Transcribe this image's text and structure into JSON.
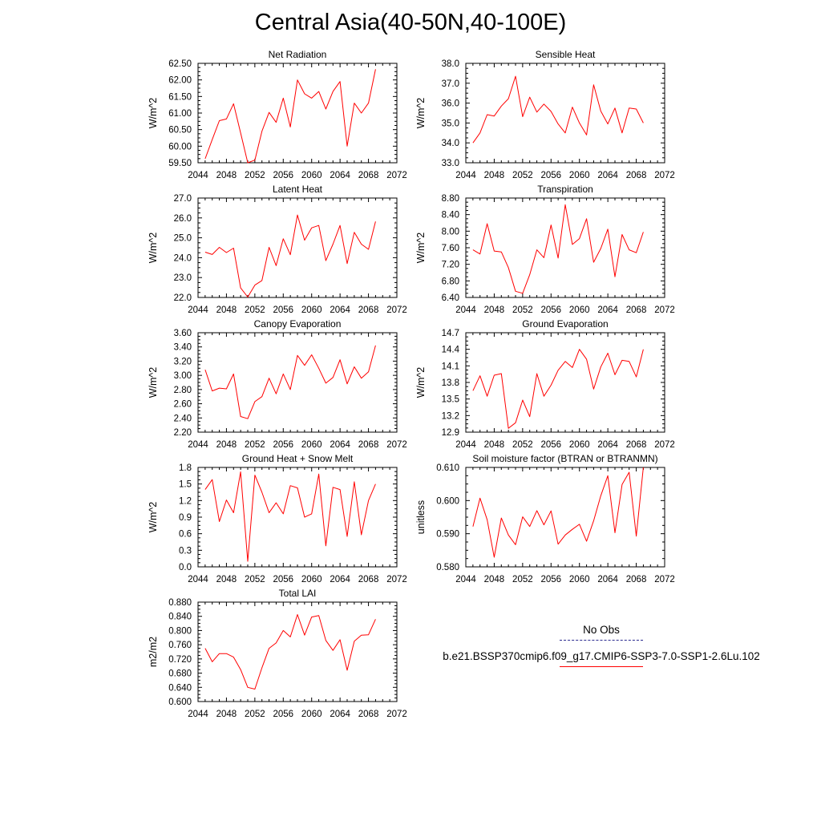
{
  "title": "Central Asia(40-50N,40-100E)",
  "legend": {
    "items": [
      {
        "label": "No Obs",
        "color": "#2a2a8f",
        "style": "dashed"
      },
      {
        "label": "b.e21.BSSP370cmip6.f09_g17.CMIP6-SSP3-7.0-SSP1-2.6Lu.102",
        "color": "#ff0000",
        "style": "solid"
      }
    ]
  },
  "chart_data": [
    {
      "type": "line",
      "title": "Net Radiation",
      "ylabel": "W/m^2",
      "xlim": [
        2044,
        2072
      ],
      "xticks": [
        "2044",
        "2048",
        "2052",
        "2056",
        "2060",
        "2064",
        "2068",
        "2072"
      ],
      "ylim": [
        59.5,
        62.5
      ],
      "yticks": [
        "59.50",
        "60.00",
        "60.50",
        "61.00",
        "61.50",
        "62.00",
        "62.50"
      ],
      "series": [
        {
          "color": "#ff0000",
          "x": [
            2045,
            2046,
            2047,
            2048,
            2049,
            2050,
            2051,
            2052,
            2053,
            2054,
            2055,
            2056,
            2057,
            2058,
            2059,
            2060,
            2061,
            2062,
            2063,
            2064,
            2065,
            2066,
            2067,
            2068,
            2069
          ],
          "y": [
            59.62,
            60.2,
            60.77,
            60.82,
            61.28,
            60.4,
            59.5,
            59.58,
            60.45,
            61.02,
            60.72,
            61.45,
            60.58,
            62.0,
            61.58,
            61.45,
            61.65,
            61.12,
            61.65,
            61.95,
            60.0,
            61.3,
            61.0,
            61.3,
            62.32
          ]
        }
      ]
    },
    {
      "type": "line",
      "title": "Sensible Heat",
      "ylabel": "W/m^2",
      "xlim": [
        2044,
        2072
      ],
      "xticks": [
        "2044",
        "2048",
        "2052",
        "2056",
        "2060",
        "2064",
        "2068",
        "2072"
      ],
      "ylim": [
        33.0,
        38.0
      ],
      "yticks": [
        "33.0",
        "34.0",
        "35.0",
        "36.0",
        "37.0",
        "38.0"
      ],
      "series": [
        {
          "color": "#ff0000",
          "x": [
            2045,
            2046,
            2047,
            2048,
            2049,
            2050,
            2051,
            2052,
            2053,
            2054,
            2055,
            2056,
            2057,
            2058,
            2059,
            2060,
            2061,
            2062,
            2063,
            2064,
            2065,
            2066,
            2067,
            2068,
            2069
          ],
          "y": [
            34.0,
            34.5,
            35.42,
            35.35,
            35.85,
            36.22,
            37.35,
            35.32,
            36.3,
            35.55,
            35.95,
            35.58,
            34.95,
            34.5,
            35.8,
            35.0,
            34.4,
            36.92,
            35.6,
            34.95,
            35.75,
            34.5,
            35.75,
            35.7,
            35.0
          ]
        }
      ]
    },
    {
      "type": "line",
      "title": "Latent Heat",
      "ylabel": "W/m^2",
      "xlim": [
        2044,
        2072
      ],
      "xticks": [
        "2044",
        "2048",
        "2052",
        "2056",
        "2060",
        "2064",
        "2068",
        "2072"
      ],
      "ylim": [
        22.0,
        27.0
      ],
      "yticks": [
        "22.0",
        "23.0",
        "24.0",
        "25.0",
        "26.0",
        "27.0"
      ],
      "series": [
        {
          "color": "#ff0000",
          "x": [
            2045,
            2046,
            2047,
            2048,
            2049,
            2050,
            2051,
            2052,
            2053,
            2054,
            2055,
            2056,
            2057,
            2058,
            2059,
            2060,
            2061,
            2062,
            2063,
            2064,
            2065,
            2066,
            2067,
            2068,
            2069
          ],
          "y": [
            24.28,
            24.16,
            24.52,
            24.26,
            24.48,
            22.48,
            22.02,
            22.62,
            22.85,
            24.52,
            23.6,
            24.95,
            24.15,
            26.15,
            24.88,
            25.5,
            25.62,
            23.85,
            24.68,
            25.62,
            23.7,
            25.28,
            24.68,
            24.42,
            25.82
          ]
        }
      ]
    },
    {
      "type": "line",
      "title": "Transpiration",
      "ylabel": "W/m^2",
      "xlim": [
        2044,
        2072
      ],
      "xticks": [
        "2044",
        "2048",
        "2052",
        "2056",
        "2060",
        "2064",
        "2068",
        "2072"
      ],
      "ylim": [
        6.4,
        8.8
      ],
      "yticks": [
        "6.40",
        "6.80",
        "7.20",
        "7.60",
        "8.00",
        "8.40",
        "8.80"
      ],
      "series": [
        {
          "color": "#ff0000",
          "x": [
            2045,
            2046,
            2047,
            2048,
            2049,
            2050,
            2051,
            2052,
            2053,
            2054,
            2055,
            2056,
            2057,
            2058,
            2059,
            2060,
            2061,
            2062,
            2063,
            2064,
            2065,
            2066,
            2067,
            2068,
            2069
          ],
          "y": [
            7.55,
            7.45,
            8.18,
            7.52,
            7.5,
            7.12,
            6.55,
            6.5,
            6.95,
            7.55,
            7.36,
            8.15,
            7.35,
            8.64,
            7.68,
            7.82,
            8.3,
            7.25,
            7.58,
            8.05,
            6.9,
            7.92,
            7.55,
            7.48,
            7.98
          ]
        }
      ]
    },
    {
      "type": "line",
      "title": "Canopy Evaporation",
      "ylabel": "W/m^2",
      "xlim": [
        2044,
        2072
      ],
      "xticks": [
        "2044",
        "2048",
        "2052",
        "2056",
        "2060",
        "2064",
        "2068",
        "2072"
      ],
      "ylim": [
        2.2,
        3.6
      ],
      "yticks": [
        "2.20",
        "2.40",
        "2.60",
        "2.80",
        "3.00",
        "3.20",
        "3.40",
        "3.60"
      ],
      "series": [
        {
          "color": "#ff0000",
          "x": [
            2045,
            2046,
            2047,
            2048,
            2049,
            2050,
            2051,
            2052,
            2053,
            2054,
            2055,
            2056,
            2057,
            2058,
            2059,
            2060,
            2061,
            2062,
            2063,
            2064,
            2065,
            2066,
            2067,
            2068,
            2069
          ],
          "y": [
            3.08,
            2.78,
            2.82,
            2.81,
            3.02,
            2.42,
            2.39,
            2.63,
            2.7,
            2.96,
            2.74,
            3.02,
            2.8,
            3.28,
            3.14,
            3.29,
            3.1,
            2.89,
            2.97,
            3.22,
            2.88,
            3.12,
            2.96,
            3.05,
            3.42
          ]
        }
      ]
    },
    {
      "type": "line",
      "title": "Ground Evaporation",
      "ylabel": "W/m^2",
      "xlim": [
        2044,
        2072
      ],
      "xticks": [
        "2044",
        "2048",
        "2052",
        "2056",
        "2060",
        "2064",
        "2068",
        "2072"
      ],
      "ylim": [
        12.9,
        14.7
      ],
      "yticks": [
        "12.9",
        "13.2",
        "13.5",
        "13.8",
        "14.1",
        "14.4",
        "14.7"
      ],
      "series": [
        {
          "color": "#ff0000",
          "x": [
            2045,
            2046,
            2047,
            2048,
            2049,
            2050,
            2051,
            2052,
            2053,
            2054,
            2055,
            2056,
            2057,
            2058,
            2059,
            2060,
            2061,
            2062,
            2063,
            2064,
            2065,
            2066,
            2067,
            2068,
            2069
          ],
          "y": [
            13.65,
            13.92,
            13.55,
            13.93,
            13.96,
            12.97,
            13.07,
            13.48,
            13.18,
            13.96,
            13.55,
            13.75,
            14.02,
            14.18,
            14.07,
            14.4,
            14.22,
            13.68,
            14.08,
            14.33,
            13.94,
            14.2,
            14.18,
            13.9,
            14.4
          ]
        }
      ]
    },
    {
      "type": "line",
      "title": "Ground Heat + Snow Melt",
      "ylabel": "W/m^2",
      "xlim": [
        2044,
        2072
      ],
      "xticks": [
        "2044",
        "2048",
        "2052",
        "2056",
        "2060",
        "2064",
        "2068",
        "2072"
      ],
      "ylim": [
        0.0,
        1.8
      ],
      "yticks": [
        "0.0",
        "0.3",
        "0.6",
        "0.9",
        "1.2",
        "1.5",
        "1.8"
      ],
      "series": [
        {
          "color": "#ff0000",
          "x": [
            2045,
            2046,
            2047,
            2048,
            2049,
            2050,
            2051,
            2052,
            2053,
            2054,
            2055,
            2056,
            2057,
            2058,
            2059,
            2060,
            2061,
            2062,
            2063,
            2064,
            2065,
            2066,
            2067,
            2068,
            2069
          ],
          "y": [
            1.4,
            1.58,
            0.82,
            1.21,
            0.98,
            1.72,
            0.1,
            1.66,
            1.35,
            0.98,
            1.16,
            0.96,
            1.47,
            1.43,
            0.9,
            0.96,
            1.68,
            0.38,
            1.44,
            1.4,
            0.55,
            1.54,
            0.58,
            1.2,
            1.5
          ]
        }
      ]
    },
    {
      "type": "line",
      "title": "Soil moisture factor (BTRAN or BTRANMN)",
      "ylabel": "unitless",
      "xlim": [
        2044,
        2072
      ],
      "xticks": [
        "2044",
        "2048",
        "2052",
        "2056",
        "2060",
        "2064",
        "2068",
        "2072"
      ],
      "ylim": [
        0.58,
        0.615
      ],
      "yticks": [
        "0.580",
        "0.590",
        "0.600",
        "0.610"
      ],
      "series": [
        {
          "color": "#ff0000",
          "x": [
            2045,
            2046,
            2047,
            2048,
            2049,
            2050,
            2051,
            2052,
            2053,
            2054,
            2055,
            2056,
            2057,
            2058,
            2059,
            2060,
            2061,
            2062,
            2063,
            2064,
            2065,
            2066,
            2067,
            2068,
            2069
          ],
          "y": [
            0.5942,
            0.6042,
            0.5966,
            0.5834,
            0.5972,
            0.5912,
            0.5878,
            0.5976,
            0.5942,
            0.5998,
            0.5948,
            0.5997,
            0.588,
            0.5912,
            0.5932,
            0.595,
            0.589,
            0.5962,
            0.605,
            0.6121,
            0.592,
            0.609,
            0.6133,
            0.5908,
            0.615
          ]
        }
      ]
    },
    {
      "type": "line",
      "title": "Total LAI",
      "ylabel": "m2/m2",
      "xlim": [
        2044,
        2072
      ],
      "xticks": [
        "2044",
        "2048",
        "2052",
        "2056",
        "2060",
        "2064",
        "2068",
        "2072"
      ],
      "ylim": [
        0.6,
        0.88
      ],
      "yticks": [
        "0.600",
        "0.640",
        "0.680",
        "0.720",
        "0.760",
        "0.800",
        "0.840",
        "0.880"
      ],
      "series": [
        {
          "color": "#ff0000",
          "x": [
            2045,
            2046,
            2047,
            2048,
            2049,
            2050,
            2051,
            2052,
            2053,
            2054,
            2055,
            2056,
            2057,
            2058,
            2059,
            2060,
            2061,
            2062,
            2063,
            2064,
            2065,
            2066,
            2067,
            2068,
            2069
          ],
          "y": [
            0.75,
            0.712,
            0.735,
            0.735,
            0.725,
            0.69,
            0.64,
            0.635,
            0.695,
            0.75,
            0.765,
            0.8,
            0.782,
            0.845,
            0.787,
            0.838,
            0.842,
            0.772,
            0.744,
            0.774,
            0.688,
            0.77,
            0.787,
            0.788,
            0.832
          ]
        }
      ]
    }
  ]
}
